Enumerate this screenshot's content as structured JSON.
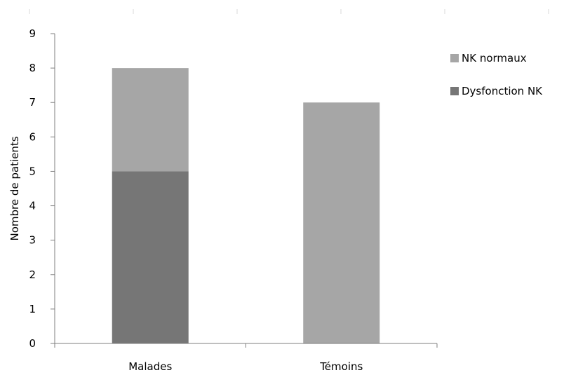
{
  "chart_data": {
    "type": "bar",
    "stacked": true,
    "categories": [
      "Malades",
      "Témoins"
    ],
    "series": [
      {
        "name": "Dysfonction NK",
        "values": [
          5,
          0
        ],
        "color": "#767676"
      },
      {
        "name": "NK normaux",
        "values": [
          3,
          7
        ],
        "color": "#a6a6a6"
      }
    ],
    "ylabel": "Nombre de patients",
    "xlabel": "",
    "ylim": [
      0,
      9
    ],
    "yticks": [
      0,
      1,
      2,
      3,
      4,
      5,
      6,
      7,
      8,
      9
    ],
    "grid": false,
    "legend": {
      "position": "right",
      "entries": [
        "NK normaux",
        "Dysfonction NK"
      ]
    }
  }
}
